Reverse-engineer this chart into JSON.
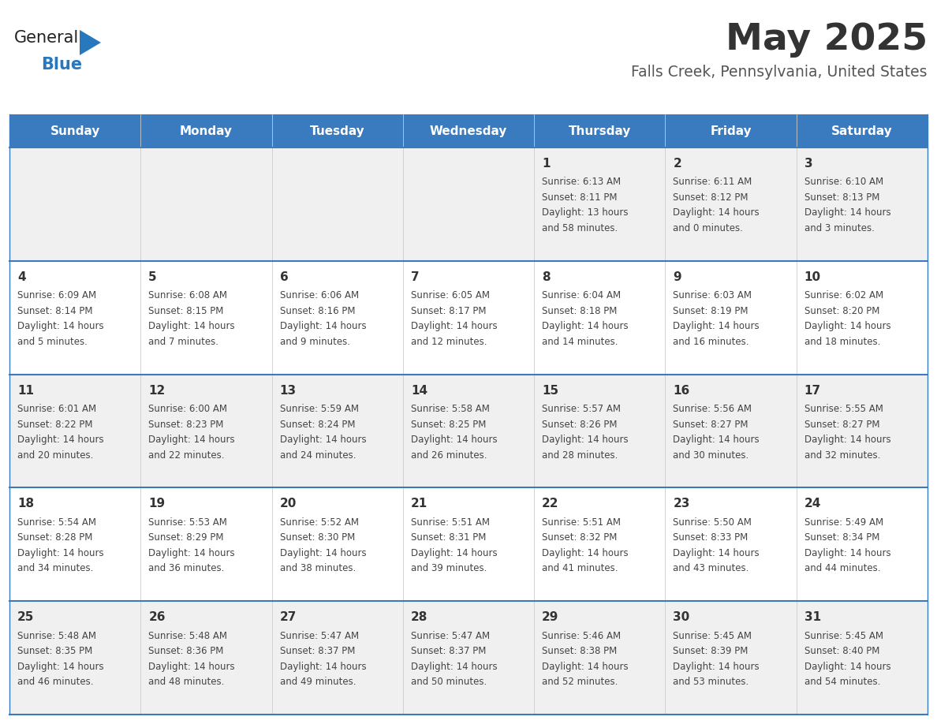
{
  "title": "May 2025",
  "subtitle": "Falls Creek, Pennsylvania, United States",
  "days_of_week": [
    "Sunday",
    "Monday",
    "Tuesday",
    "Wednesday",
    "Thursday",
    "Friday",
    "Saturday"
  ],
  "header_bg": "#3a7abf",
  "header_text": "#ffffff",
  "row_bg_odd": "#f0f0f0",
  "row_bg_even": "#ffffff",
  "text_color": "#333333",
  "border_color": "#3a7abf",
  "logo_black": "#222222",
  "logo_blue": "#2878be",
  "subtitle_color": "#555555",
  "cell_text_color": "#444444",
  "calendar_data": [
    [
      {
        "day": "",
        "sunrise": "",
        "sunset": "",
        "daylight": ""
      },
      {
        "day": "",
        "sunrise": "",
        "sunset": "",
        "daylight": ""
      },
      {
        "day": "",
        "sunrise": "",
        "sunset": "",
        "daylight": ""
      },
      {
        "day": "",
        "sunrise": "",
        "sunset": "",
        "daylight": ""
      },
      {
        "day": "1",
        "sunrise": "6:13 AM",
        "sunset": "8:11 PM",
        "daylight": "13 hours\nand 58 minutes."
      },
      {
        "day": "2",
        "sunrise": "6:11 AM",
        "sunset": "8:12 PM",
        "daylight": "14 hours\nand 0 minutes."
      },
      {
        "day": "3",
        "sunrise": "6:10 AM",
        "sunset": "8:13 PM",
        "daylight": "14 hours\nand 3 minutes."
      }
    ],
    [
      {
        "day": "4",
        "sunrise": "6:09 AM",
        "sunset": "8:14 PM",
        "daylight": "14 hours\nand 5 minutes."
      },
      {
        "day": "5",
        "sunrise": "6:08 AM",
        "sunset": "8:15 PM",
        "daylight": "14 hours\nand 7 minutes."
      },
      {
        "day": "6",
        "sunrise": "6:06 AM",
        "sunset": "8:16 PM",
        "daylight": "14 hours\nand 9 minutes."
      },
      {
        "day": "7",
        "sunrise": "6:05 AM",
        "sunset": "8:17 PM",
        "daylight": "14 hours\nand 12 minutes."
      },
      {
        "day": "8",
        "sunrise": "6:04 AM",
        "sunset": "8:18 PM",
        "daylight": "14 hours\nand 14 minutes."
      },
      {
        "day": "9",
        "sunrise": "6:03 AM",
        "sunset": "8:19 PM",
        "daylight": "14 hours\nand 16 minutes."
      },
      {
        "day": "10",
        "sunrise": "6:02 AM",
        "sunset": "8:20 PM",
        "daylight": "14 hours\nand 18 minutes."
      }
    ],
    [
      {
        "day": "11",
        "sunrise": "6:01 AM",
        "sunset": "8:22 PM",
        "daylight": "14 hours\nand 20 minutes."
      },
      {
        "day": "12",
        "sunrise": "6:00 AM",
        "sunset": "8:23 PM",
        "daylight": "14 hours\nand 22 minutes."
      },
      {
        "day": "13",
        "sunrise": "5:59 AM",
        "sunset": "8:24 PM",
        "daylight": "14 hours\nand 24 minutes."
      },
      {
        "day": "14",
        "sunrise": "5:58 AM",
        "sunset": "8:25 PM",
        "daylight": "14 hours\nand 26 minutes."
      },
      {
        "day": "15",
        "sunrise": "5:57 AM",
        "sunset": "8:26 PM",
        "daylight": "14 hours\nand 28 minutes."
      },
      {
        "day": "16",
        "sunrise": "5:56 AM",
        "sunset": "8:27 PM",
        "daylight": "14 hours\nand 30 minutes."
      },
      {
        "day": "17",
        "sunrise": "5:55 AM",
        "sunset": "8:27 PM",
        "daylight": "14 hours\nand 32 minutes."
      }
    ],
    [
      {
        "day": "18",
        "sunrise": "5:54 AM",
        "sunset": "8:28 PM",
        "daylight": "14 hours\nand 34 minutes."
      },
      {
        "day": "19",
        "sunrise": "5:53 AM",
        "sunset": "8:29 PM",
        "daylight": "14 hours\nand 36 minutes."
      },
      {
        "day": "20",
        "sunrise": "5:52 AM",
        "sunset": "8:30 PM",
        "daylight": "14 hours\nand 38 minutes."
      },
      {
        "day": "21",
        "sunrise": "5:51 AM",
        "sunset": "8:31 PM",
        "daylight": "14 hours\nand 39 minutes."
      },
      {
        "day": "22",
        "sunrise": "5:51 AM",
        "sunset": "8:32 PM",
        "daylight": "14 hours\nand 41 minutes."
      },
      {
        "day": "23",
        "sunrise": "5:50 AM",
        "sunset": "8:33 PM",
        "daylight": "14 hours\nand 43 minutes."
      },
      {
        "day": "24",
        "sunrise": "5:49 AM",
        "sunset": "8:34 PM",
        "daylight": "14 hours\nand 44 minutes."
      }
    ],
    [
      {
        "day": "25",
        "sunrise": "5:48 AM",
        "sunset": "8:35 PM",
        "daylight": "14 hours\nand 46 minutes."
      },
      {
        "day": "26",
        "sunrise": "5:48 AM",
        "sunset": "8:36 PM",
        "daylight": "14 hours\nand 48 minutes."
      },
      {
        "day": "27",
        "sunrise": "5:47 AM",
        "sunset": "8:37 PM",
        "daylight": "14 hours\nand 49 minutes."
      },
      {
        "day": "28",
        "sunrise": "5:47 AM",
        "sunset": "8:37 PM",
        "daylight": "14 hours\nand 50 minutes."
      },
      {
        "day": "29",
        "sunrise": "5:46 AM",
        "sunset": "8:38 PM",
        "daylight": "14 hours\nand 52 minutes."
      },
      {
        "day": "30",
        "sunrise": "5:45 AM",
        "sunset": "8:39 PM",
        "daylight": "14 hours\nand 53 minutes."
      },
      {
        "day": "31",
        "sunrise": "5:45 AM",
        "sunset": "8:40 PM",
        "daylight": "14 hours\nand 54 minutes."
      }
    ]
  ]
}
